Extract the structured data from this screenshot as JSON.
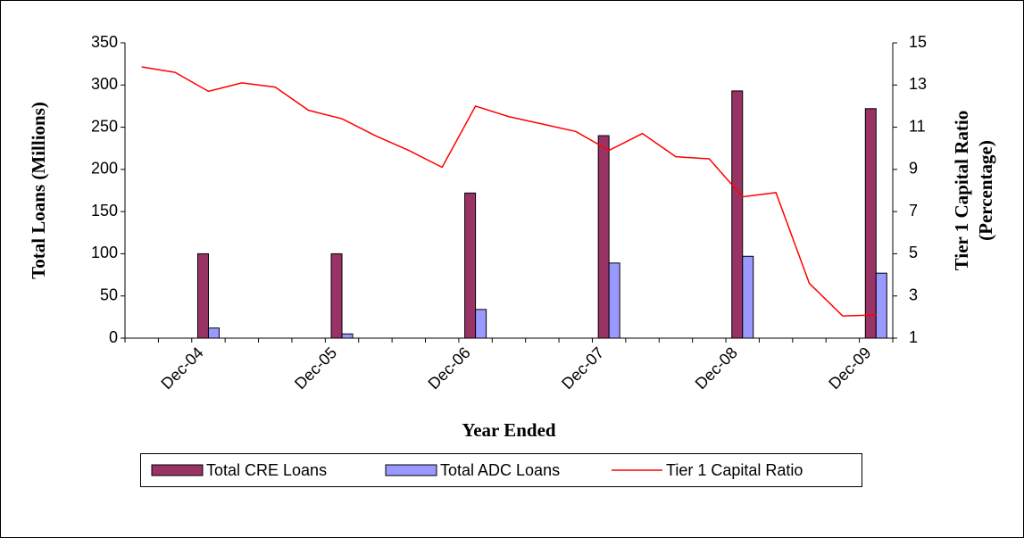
{
  "chart_data": {
    "type": "bar-line",
    "categories": [
      null,
      null,
      "Dec-04",
      null,
      null,
      null,
      "Dec-05",
      null,
      null,
      null,
      "Dec-06",
      null,
      null,
      null,
      "Dec-07",
      null,
      null,
      null,
      "Dec-08",
      null,
      null,
      null,
      "Dec-09"
    ],
    "x_label": "Year Ended",
    "y_label": "Total Loans (Millions)",
    "y2_label": [
      "Tier 1 Capital Ratio",
      "(Percentage)"
    ],
    "ylim": [
      0,
      350
    ],
    "yticks": [
      0,
      50,
      100,
      150,
      200,
      250,
      300,
      350
    ],
    "y2lim": [
      1,
      15
    ],
    "y2ticks": [
      1,
      3,
      5,
      7,
      9,
      11,
      13,
      15
    ],
    "series": [
      {
        "name": "Total CRE Loans",
        "type": "bar",
        "color": "#993366",
        "values": [
          null,
          null,
          100,
          null,
          null,
          null,
          100,
          null,
          null,
          null,
          172,
          null,
          null,
          null,
          240,
          null,
          null,
          null,
          293,
          null,
          null,
          null,
          272
        ]
      },
      {
        "name": "Total ADC Loans",
        "type": "bar",
        "color": "#9999ff",
        "values": [
          null,
          null,
          12,
          null,
          null,
          null,
          5,
          null,
          null,
          null,
          34,
          null,
          null,
          null,
          89,
          null,
          null,
          null,
          97,
          null,
          null,
          null,
          77
        ]
      },
      {
        "name": "Tier 1 Capital Ratio",
        "type": "line",
        "color": "#ff0000",
        "axis": "y2",
        "values": [
          13.86,
          13.6,
          12.7,
          13.1,
          12.9,
          11.8,
          11.4,
          10.6,
          9.9,
          9.1,
          12.0,
          11.5,
          11.15,
          10.8,
          9.9,
          10.7,
          9.6,
          9.5,
          7.7,
          7.9,
          3.6,
          2.05,
          2.1
        ]
      }
    ]
  }
}
